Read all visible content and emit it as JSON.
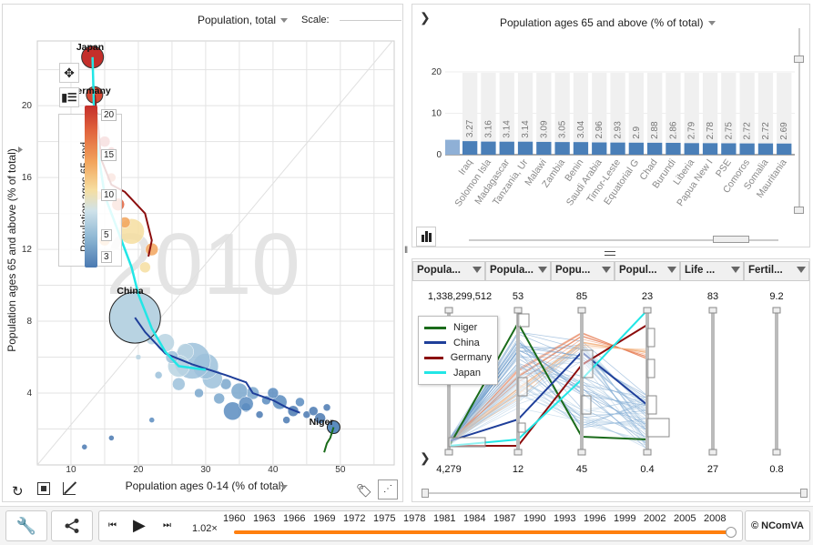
{
  "scatter": {
    "size_selector": "Population, total",
    "scale_label": "Scale:",
    "x_label": "Population ages 0-14 (% of total)",
    "y_label": "Population ages 65 and above (% of total)",
    "color_legend_label": "Population ages 65 and ...",
    "year_watermark": "2010",
    "x_ticks": [
      "10",
      "20",
      "30",
      "40",
      "50"
    ],
    "y_ticks": [
      "4",
      "8",
      "12",
      "16",
      "20"
    ],
    "color_legend_ticks": [
      "20",
      "15",
      "10",
      "5",
      "3"
    ],
    "annotations": [
      "Japan",
      "Germany",
      "China",
      "Niger"
    ]
  },
  "bar": {
    "title": "Population ages 65 and above (% of total)",
    "y_ticks": [
      "0",
      "10",
      "20"
    ],
    "chart_data": {
      "type": "bar",
      "categories": [
        "Iraq",
        "Solomon Isla",
        "Madagascar",
        "Tanzania, Ur",
        "Malawi",
        "Zambia",
        "Benin",
        "Saudi Arabia",
        "Timor-Leste",
        "Equatorial G",
        "Chad",
        "Burundi",
        "Liberia",
        "Papua New I",
        "PSE",
        "Comoros",
        "Somalia",
        "Mauritania"
      ],
      "values": [
        3.27,
        3.16,
        3.14,
        3.14,
        3.09,
        3.05,
        3.04,
        2.96,
        2.93,
        2.9,
        2.88,
        2.86,
        2.79,
        2.78,
        2.75,
        2.72,
        2.72,
        2.69
      ],
      "value_labels": [
        "3.27",
        "3.16",
        "3.14",
        "3.14",
        "3.09",
        "3.05",
        "3.04",
        "2.96",
        "2.93",
        "2.9",
        "2.88",
        "2.86",
        "2.79",
        "2.78",
        "2.75",
        "2.72",
        "2.72",
        "2.69"
      ],
      "ylim": [
        0,
        20
      ]
    }
  },
  "pc": {
    "headers": [
      "Popula...",
      "Popula...",
      "Popu...",
      "Popul...",
      "Life ...",
      "Fertil..."
    ],
    "max_labels": [
      "1,338,299,512",
      "53",
      "85",
      "23",
      "83",
      "9.2"
    ],
    "min_labels": [
      "4,279",
      "12",
      "45",
      "0.4",
      "27",
      "0.8"
    ],
    "legend": [
      {
        "name": "Niger",
        "color": "#1a6b1a"
      },
      {
        "name": "China",
        "color": "#1f3f9a"
      },
      {
        "name": "Germany",
        "color": "#8b0d0d"
      },
      {
        "name": "Japan",
        "color": "#22e6e6"
      }
    ]
  },
  "footer": {
    "speed": "1.02×",
    "years": [
      "1960",
      "1963",
      "1966",
      "1969",
      "1972",
      "1975",
      "1978",
      "1981",
      "1984",
      "1987",
      "1990",
      "1993",
      "1996",
      "1999",
      "2002",
      "2005",
      "2008"
    ],
    "copyright": "© NComVA",
    "progress": 1.0
  },
  "colors": {
    "accent": "#ff7f0e",
    "bar": "#4a7fb8",
    "niger": "#1a6b1a",
    "china": "#1f3f9a",
    "germany": "#8b0d0d",
    "japan": "#22e6e6"
  }
}
